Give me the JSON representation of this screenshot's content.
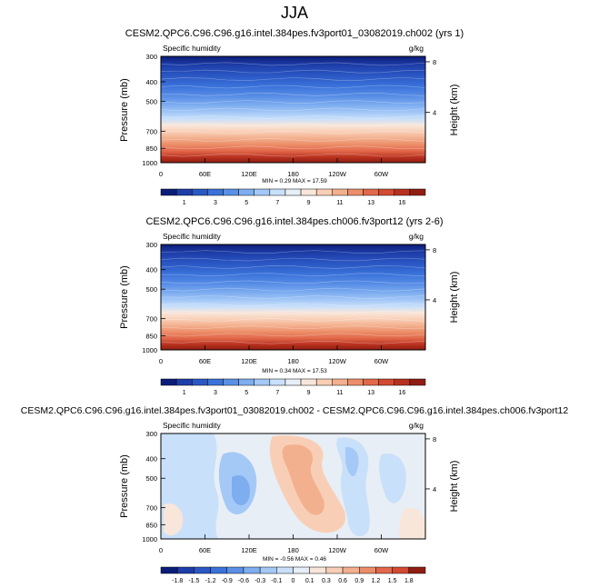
{
  "figure": {
    "title": "JJA"
  },
  "chart_data": [
    {
      "type": "heatmap",
      "title": "CESM2.QPC6.C96.C96.g16.intel.384pes.fv3port01_03082019.ch002 (yrs 1)",
      "variable": "Specific humidity",
      "units": "g/kg",
      "ylabel": "Pressure (mb)",
      "y2label": "Height (km)",
      "xticks": [
        "0",
        "60E",
        "120E",
        "180",
        "120W",
        "60W"
      ],
      "xlim": [
        0,
        360
      ],
      "yticks": [
        300,
        400,
        500,
        700,
        850,
        1000
      ],
      "ylim": [
        1000,
        300
      ],
      "y2ticks": [
        "8",
        "4"
      ],
      "stats": "MIN =   0.29  MAX =  17.59",
      "min": 0.29,
      "max": 17.59,
      "colorbar_labels": [
        "1",
        "3",
        "5",
        "7",
        "9",
        "11",
        "13",
        "16"
      ],
      "colorbar_colors": [
        "#0b1d78",
        "#1d3da8",
        "#2a57c4",
        "#3a72da",
        "#5a8fe6",
        "#7eadf0",
        "#a4c9f7",
        "#c9e0fa",
        "#e8eef5",
        "#f9e6da",
        "#f8cfb6",
        "#f3b08e",
        "#ec8d68",
        "#e2684a",
        "#d24a32",
        "#b8311f",
        "#901d12"
      ]
    },
    {
      "type": "heatmap",
      "title": "CESM2.QPC6.C96.C96.g16.intel.384pes.ch006.fv3port12 (yrs 2-6)",
      "variable": "Specific humidity",
      "units": "g/kg",
      "ylabel": "Pressure (mb)",
      "y2label": "Height (km)",
      "xticks": [
        "0",
        "60E",
        "120E",
        "180",
        "120W",
        "60W"
      ],
      "xlim": [
        0,
        360
      ],
      "yticks": [
        300,
        400,
        500,
        700,
        850,
        1000
      ],
      "ylim": [
        1000,
        300
      ],
      "y2ticks": [
        "8",
        "4"
      ],
      "stats": "MIN =   0.34  MAX =  17.53",
      "min": 0.34,
      "max": 17.53,
      "colorbar_labels": [
        "1",
        "3",
        "5",
        "7",
        "9",
        "11",
        "13",
        "16"
      ],
      "colorbar_colors": [
        "#0b1d78",
        "#1d3da8",
        "#2a57c4",
        "#3a72da",
        "#5a8fe6",
        "#7eadf0",
        "#a4c9f7",
        "#c9e0fa",
        "#e8eef5",
        "#f9e6da",
        "#f8cfb6",
        "#f3b08e",
        "#ec8d68",
        "#e2684a",
        "#d24a32",
        "#b8311f",
        "#901d12"
      ]
    },
    {
      "type": "heatmap",
      "title": "CESM2.QPC6.C96.C96.g16.intel.384pes.fv3port01_03082019.ch002 - CESM2.QPC6.C96.C96.g16.intel.384pes.ch006.fv3port12",
      "variable": "Specific humidity",
      "units": "g/kg",
      "ylabel": "Pressure (mb)",
      "y2label": "Height (km)",
      "xticks": [
        "0",
        "60E",
        "120E",
        "180",
        "120W",
        "60W"
      ],
      "xlim": [
        0,
        360
      ],
      "yticks": [
        300,
        400,
        500,
        700,
        850,
        1000
      ],
      "ylim": [
        1000,
        300
      ],
      "y2ticks": [
        "8",
        "4"
      ],
      "stats": "MIN =  -0.56  MAX =   0.46",
      "min": -0.56,
      "max": 0.46,
      "colorbar_labels": [
        "-1.8",
        "-1.5",
        "-1.2",
        "-0.9",
        "-0.6",
        "-0.3",
        "-0.1",
        "0",
        "0.1",
        "0.3",
        "0.6",
        "0.9",
        "1.2",
        "1.5",
        "1.8"
      ],
      "colorbar_colors": [
        "#0b1d78",
        "#1d3da8",
        "#2a57c4",
        "#3a72da",
        "#5a8fe6",
        "#7eadf0",
        "#a4c9f7",
        "#c9e0fa",
        "#e8eef5",
        "#f9e6da",
        "#f8cfb6",
        "#f3b08e",
        "#ec8d68",
        "#e2684a",
        "#d24a32",
        "#901d12"
      ]
    }
  ]
}
